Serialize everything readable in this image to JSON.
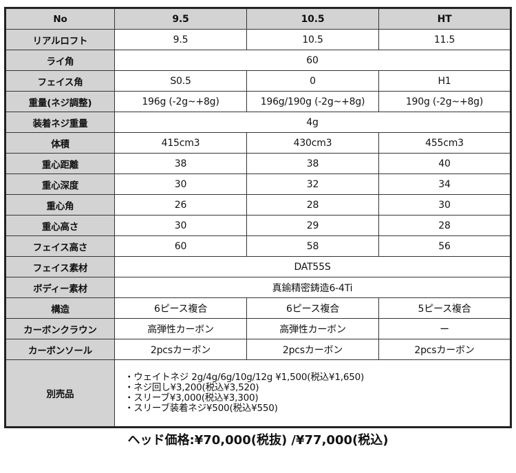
{
  "table": {
    "header": [
      "No",
      "9.5",
      "10.5",
      "HT"
    ],
    "rows": [
      {
        "label": "リアルロフト",
        "values": [
          "9.5",
          "10.5",
          "11.5"
        ]
      },
      {
        "label": "ライ角",
        "values": [
          "60"
        ]
      },
      {
        "label": "フェイス角",
        "values": [
          "S0.5",
          "0",
          "H1"
        ]
      },
      {
        "label": "重量(ネジ調整)",
        "values": [
          "196g (-2g~+8g)",
          "196g/190g (-2g~+8g)",
          "190g (-2g~+8g)"
        ]
      },
      {
        "label": "装着ネジ重量",
        "values": [
          "4g"
        ]
      },
      {
        "label": "体積",
        "values": [
          "415cm3",
          "430cm3",
          "455cm3"
        ]
      },
      {
        "label": "重心距離",
        "values": [
          "38",
          "38",
          "40"
        ]
      },
      {
        "label": "重心深度",
        "values": [
          "30",
          "32",
          "34"
        ]
      },
      {
        "label": "重心角",
        "values": [
          "26",
          "28",
          "30"
        ]
      },
      {
        "label": "重心高さ",
        "values": [
          "30",
          "29",
          "28"
        ]
      },
      {
        "label": "フェイス高さ",
        "values": [
          "60",
          "58",
          "56"
        ]
      },
      {
        "label": "フェイス素材",
        "values": [
          "DAT55S"
        ]
      },
      {
        "label": "ボディー素材",
        "values": [
          "真鍮精密鋳造6-4Ti"
        ]
      },
      {
        "label": "構造",
        "values": [
          "6ピース複合",
          "6ピース複合",
          "5ピース複合"
        ]
      },
      {
        "label": "カーボンクラウン",
        "values": [
          "高弾性カーボン",
          "高弾性カーボン",
          "ー"
        ]
      },
      {
        "label": "カーボンソール",
        "values": [
          "2pcsカーボン",
          "2pcsカーボン",
          "2pcsカーボン"
        ]
      }
    ],
    "accessories": {
      "label": "別売品",
      "items": [
        "・ウェイトネジ  2g/4g/6g/10g/12g  ¥1,500(税込¥1,650)",
        "・ネジ回し¥3,200(税込¥3,520)",
        "・スリーブ¥3,000(税込¥3,300)",
        "・スリーブ装着ネジ¥500(税込¥550)"
      ]
    }
  },
  "price": "ヘッド価格:¥70,000(税抜) /¥77,000(税込)"
}
